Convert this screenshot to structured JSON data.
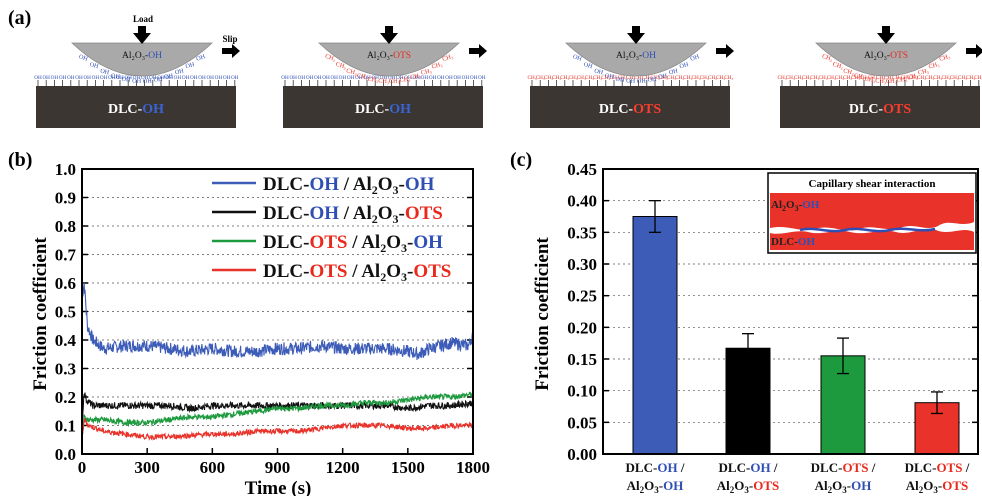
{
  "colors": {
    "oh": "#2f4fb5",
    "ots": "#e8291c",
    "black": "#111111",
    "green": "#1e9a3e",
    "blue": "#3d5cb8",
    "red": "#e8322a",
    "substrate": "#3b3632",
    "ball": "#a9a9a9"
  },
  "panel_a": {
    "label": "(a)",
    "load_label": "Load",
    "slip_label": "Slip",
    "schematics": [
      {
        "substrate_prefix": "DLC-",
        "substrate_group": "OH",
        "ball_prefix": "Al₂O₃-",
        "ball_group": "OH",
        "surface_unit": "OH",
        "ball_unit": "OH"
      },
      {
        "substrate_prefix": "DLC-",
        "substrate_group": "OH",
        "ball_prefix": "Al₂O₃-",
        "ball_group": "OTS",
        "surface_unit": "OH",
        "ball_unit": "CH₃"
      },
      {
        "substrate_prefix": "DLC-",
        "substrate_group": "OTS",
        "ball_prefix": "Al₂O₃-",
        "ball_group": "OH",
        "surface_unit": "CH₃",
        "ball_unit": "OH"
      },
      {
        "substrate_prefix": "DLC-",
        "substrate_group": "OTS",
        "ball_prefix": "Al₂O₃-",
        "ball_group": "OTS",
        "surface_unit": "CH₃",
        "ball_unit": "CH₃"
      }
    ]
  },
  "chart_data": [
    {
      "panel": "(b)",
      "type": "line",
      "xlabel": "Time (s)",
      "ylabel": "Friction coefficient",
      "xlim": [
        0,
        1800
      ],
      "ylim": [
        0,
        1.0
      ],
      "xticks": [
        "0",
        "300",
        "600",
        "900",
        "1200",
        "1500",
        "1800"
      ],
      "yticks": [
        "0.0",
        "0.1",
        "0.2",
        "0.3",
        "0.4",
        "0.5",
        "0.6",
        "0.7",
        "0.8",
        "0.9",
        "1.0"
      ],
      "grid": "dotted horizontal",
      "legend_position": "top-right",
      "series": [
        {
          "name": "DLC-OH / Al2O3-OH",
          "color": "#3d5cb8",
          "x": [
            0,
            10,
            25,
            50,
            100,
            200,
            300,
            400,
            500,
            600,
            700,
            800,
            900,
            1000,
            1100,
            1200,
            1300,
            1400,
            1500,
            1550,
            1600,
            1700,
            1780,
            1800
          ],
          "y": [
            0.55,
            0.6,
            0.45,
            0.4,
            0.37,
            0.38,
            0.38,
            0.37,
            0.36,
            0.37,
            0.36,
            0.36,
            0.37,
            0.37,
            0.38,
            0.37,
            0.37,
            0.37,
            0.36,
            0.35,
            0.37,
            0.39,
            0.38,
            0.42
          ]
        },
        {
          "name": "DLC-OH / Al2O3-OTS",
          "color": "#111111",
          "x": [
            0,
            10,
            20,
            50,
            100,
            200,
            300,
            400,
            500,
            600,
            700,
            800,
            900,
            1000,
            1100,
            1200,
            1300,
            1400,
            1500,
            1600,
            1700,
            1800
          ],
          "y": [
            0.1,
            0.22,
            0.19,
            0.17,
            0.17,
            0.17,
            0.17,
            0.17,
            0.16,
            0.17,
            0.17,
            0.17,
            0.17,
            0.17,
            0.17,
            0.17,
            0.17,
            0.17,
            0.16,
            0.17,
            0.17,
            0.18
          ]
        },
        {
          "name": "DLC-OTS / Al2O3-OH",
          "color": "#1e9a3e",
          "x": [
            0,
            10,
            30,
            100,
            200,
            300,
            400,
            500,
            600,
            700,
            800,
            900,
            1000,
            1100,
            1200,
            1300,
            1400,
            1500,
            1600,
            1700,
            1800
          ],
          "y": [
            0.05,
            0.13,
            0.12,
            0.12,
            0.11,
            0.11,
            0.12,
            0.13,
            0.13,
            0.14,
            0.15,
            0.16,
            0.16,
            0.17,
            0.17,
            0.18,
            0.18,
            0.19,
            0.2,
            0.2,
            0.21
          ]
        },
        {
          "name": "DLC-OTS / Al2O3-OTS",
          "color": "#e8322a",
          "x": [
            0,
            10,
            30,
            100,
            200,
            300,
            400,
            500,
            600,
            700,
            800,
            900,
            1000,
            1100,
            1200,
            1300,
            1400,
            1500,
            1600,
            1700,
            1800
          ],
          "y": [
            0.05,
            0.12,
            0.1,
            0.08,
            0.07,
            0.06,
            0.06,
            0.065,
            0.07,
            0.07,
            0.08,
            0.08,
            0.08,
            0.09,
            0.1,
            0.1,
            0.1,
            0.09,
            0.09,
            0.1,
            0.1
          ]
        }
      ],
      "legend": [
        {
          "a": "DLC-",
          "b": "OH",
          "c": " / Al",
          "d": "2",
          "e": "O",
          "f": "3",
          "g": "-",
          "h": "OH",
          "color": "#3d5cb8",
          "bcol": "#2f4fb5",
          "hcol": "#2f4fb5"
        },
        {
          "a": "DLC-",
          "b": "OH",
          "c": " / Al",
          "d": "2",
          "e": "O",
          "f": "3",
          "g": "-",
          "h": "OTS",
          "color": "#111111",
          "bcol": "#2f4fb5",
          "hcol": "#e8291c"
        },
        {
          "a": "DLC-",
          "b": "OTS",
          "c": " / Al",
          "d": "2",
          "e": "O",
          "f": "3",
          "g": "-",
          "h": "OH",
          "color": "#1e9a3e",
          "bcol": "#e8291c",
          "hcol": "#2f4fb5"
        },
        {
          "a": "DLC-",
          "b": "OTS",
          "c": " / Al",
          "d": "2",
          "e": "O",
          "f": "3",
          "g": "-",
          "h": "OTS",
          "color": "#e8322a",
          "bcol": "#e8291c",
          "hcol": "#e8291c"
        }
      ]
    },
    {
      "panel": "(c)",
      "type": "bar",
      "ylabel": "Friction coefficient",
      "ylim": [
        0,
        0.45
      ],
      "yticks": [
        "0.00",
        "0.05",
        "0.10",
        "0.15",
        "0.20",
        "0.25",
        "0.30",
        "0.35",
        "0.40",
        "0.45"
      ],
      "grid": "dotted horizontal",
      "categories": [
        {
          "l1a": "DLC-",
          "l1b": "OH",
          "l1c": " /",
          "l2a": "Al",
          "l2b": "2",
          "l2c": "O",
          "l2d": "3",
          "l2e": "-",
          "l2f": "OH",
          "c1": "#2f4fb5",
          "c2": "#2f4fb5"
        },
        {
          "l1a": "DLC-",
          "l1b": "OH",
          "l1c": " /",
          "l2a": "Al",
          "l2b": "2",
          "l2c": "O",
          "l2d": "3",
          "l2e": "-",
          "l2f": "OTS",
          "c1": "#2f4fb5",
          "c2": "#e8291c"
        },
        {
          "l1a": "DLC-",
          "l1b": "OTS",
          "l1c": " /",
          "l2a": "Al",
          "l2b": "2",
          "l2c": "O",
          "l2d": "3",
          "l2e": "-",
          "l2f": "OH",
          "c1": "#e8291c",
          "c2": "#2f4fb5"
        },
        {
          "l1a": "DLC-",
          "l1b": "OTS",
          "l1c": " /",
          "l2a": "Al",
          "l2b": "2",
          "l2c": "O",
          "l2d": "3",
          "l2e": "-",
          "l2f": "OTS",
          "c1": "#e8291c",
          "c2": "#e8291c"
        }
      ],
      "values": [
        0.375,
        0.167,
        0.155,
        0.081
      ],
      "errors": [
        0.025,
        0.023,
        0.028,
        0.017
      ],
      "bar_colors": [
        "#3d5cb8",
        "#000000",
        "#1e9a3e",
        "#e8322a"
      ],
      "inset": {
        "title": "Capillary shear interaction",
        "top_a": "Al",
        "top_b": "2",
        "top_c": "O",
        "top_d": "3",
        "top_e": "-",
        "top_f": "OH",
        "bottom_a": "DLC-",
        "bottom_b": "OH"
      }
    }
  ]
}
